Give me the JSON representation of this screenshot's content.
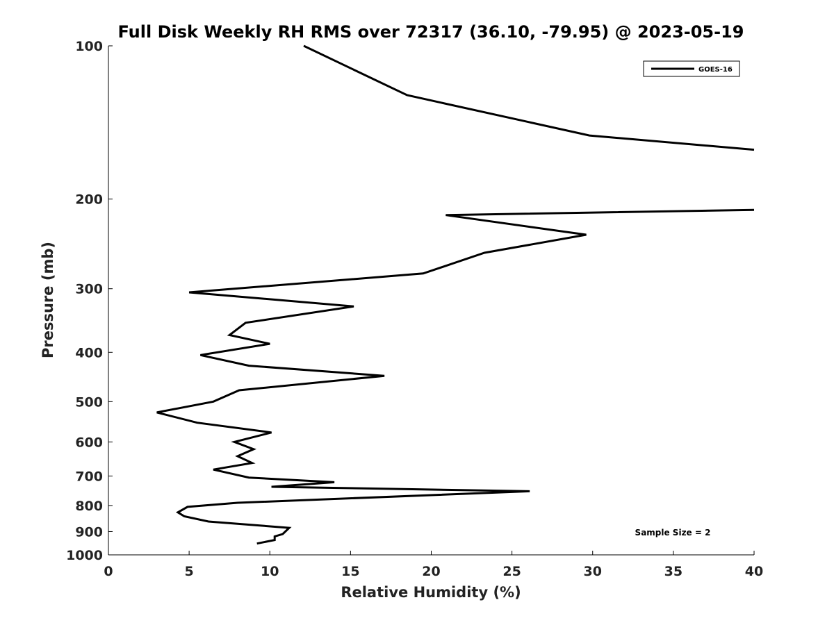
{
  "chart_data": {
    "type": "line",
    "title": "Full Disk Weekly RH RMS over 72317 (36.10, -79.95) @ 2023-05-19",
    "xlabel": "Relative Humidity (%)",
    "ylabel": "Pressure (mb)",
    "xlim": [
      0,
      40
    ],
    "ylim": [
      1000,
      100
    ],
    "yscale": "log",
    "y_reversed": true,
    "xticks": [
      0,
      5,
      10,
      15,
      20,
      25,
      30,
      35,
      40
    ],
    "yticks": [
      100,
      200,
      300,
      400,
      500,
      600,
      700,
      800,
      900,
      1000
    ],
    "grid": false,
    "legend_position": "top-right",
    "annotation": "Sample Size = 2",
    "series": [
      {
        "name": "GOES-16",
        "color": "#000000",
        "points": [
          [
            12.1,
            100
          ],
          [
            18.5,
            125
          ],
          [
            29.8,
            150
          ],
          [
            40.0,
            160
          ],
          null,
          [
            40.0,
            210
          ],
          [
            20.9,
            215
          ],
          [
            29.6,
            235
          ],
          [
            23.3,
            255
          ],
          [
            19.5,
            280
          ],
          [
            5.0,
            305
          ],
          [
            15.2,
            325
          ],
          [
            8.5,
            350
          ],
          [
            7.5,
            370
          ],
          [
            10.0,
            385
          ],
          [
            5.7,
            405
          ],
          [
            8.7,
            425
          ],
          [
            17.1,
            445
          ],
          [
            8.1,
            475
          ],
          [
            6.5,
            500
          ],
          [
            3.0,
            525
          ],
          [
            5.5,
            550
          ],
          [
            10.1,
            575
          ],
          [
            7.8,
            600
          ],
          [
            9.0,
            620
          ],
          [
            8.0,
            640
          ],
          [
            8.9,
            660
          ],
          [
            6.5,
            680
          ],
          [
            8.7,
            705
          ],
          [
            14.0,
            720
          ],
          [
            10.1,
            735
          ],
          [
            26.1,
            750
          ],
          [
            8.0,
            790
          ],
          [
            4.9,
            805
          ],
          [
            4.3,
            825
          ],
          [
            4.7,
            840
          ],
          [
            6.2,
            860
          ],
          [
            11.2,
            885
          ],
          [
            10.8,
            910
          ],
          [
            10.3,
            920
          ],
          [
            10.3,
            935
          ],
          [
            9.2,
            950
          ]
        ]
      }
    ]
  }
}
